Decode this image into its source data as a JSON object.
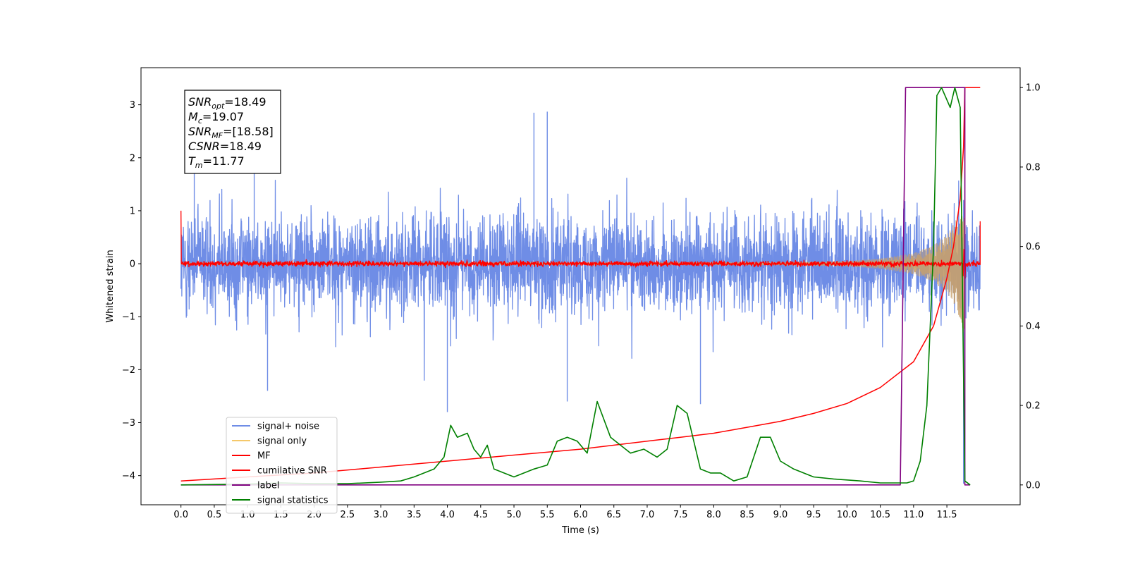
{
  "chart_data": {
    "type": "line",
    "xlabel": "Time (s)",
    "ylabel": "Whitened strain",
    "xlim": [
      -0.6,
      12.6
    ],
    "ylim": [
      -4.55,
      3.7
    ],
    "y2lim": [
      -0.05,
      1.05
    ],
    "x_ticks": [
      "0.0",
      "0.5",
      "1.0",
      "1.5",
      "2.0",
      "2.5",
      "3.0",
      "3.5",
      "4.0",
      "4.5",
      "5.0",
      "5.5",
      "6.0",
      "6.5",
      "7.0",
      "7.5",
      "8.0",
      "8.5",
      "9.0",
      "9.5",
      "10.0",
      "10.5",
      "11.0",
      "11.5"
    ],
    "y_ticks": [
      "3",
      "2",
      "1",
      "0",
      "−1",
      "−2",
      "−3",
      "−4"
    ],
    "y2_ticks": [
      "1.0",
      "0.8",
      "0.6",
      "0.4",
      "0.2",
      "0.0"
    ],
    "annotation": {
      "lines": [
        {
          "name": "SNR",
          "sub": "opt",
          "value": "=18.49"
        },
        {
          "name": "M",
          "sub": "c",
          "value": "=19.07"
        },
        {
          "name": "SNR",
          "sub": "MF",
          "value": "=[18.58]"
        },
        {
          "name": "CSNR",
          "sub": "",
          "value": "=18.49"
        },
        {
          "name": "T",
          "sub": "m",
          "value": "=11.77"
        }
      ]
    },
    "legend": {
      "placement": "lower-left",
      "entries": [
        {
          "label": "signal+ noise",
          "color": "#6f8de6"
        },
        {
          "label": "signal only",
          "color": "#f5c86a"
        },
        {
          "label": "MF",
          "color": "#ff0000"
        },
        {
          "label": "cumilative SNR",
          "color": "#ff0000"
        },
        {
          "label": "label",
          "color": "#800080"
        },
        {
          "label": "signal statistics",
          "color": "#008000"
        }
      ]
    },
    "series": [
      {
        "name": "signal+ noise",
        "axis": "left",
        "color": "#6f8de6",
        "x_range": [
          0.0,
          12.0
        ],
        "envelope_typical": [
          -1.3,
          1.5
        ],
        "extremes": [
          {
            "x": 0.2,
            "y": 2.4
          },
          {
            "x": 1.1,
            "y": 2.5
          },
          {
            "x": 1.3,
            "y": -2.4
          },
          {
            "x": 4.0,
            "y": -2.8
          },
          {
            "x": 5.3,
            "y": 2.85
          },
          {
            "x": 5.5,
            "y": 2.87
          },
          {
            "x": 5.8,
            "y": -2.6
          },
          {
            "x": 7.8,
            "y": -2.65
          },
          {
            "x": 11.75,
            "y": -4.15
          }
        ]
      },
      {
        "name": "signal only",
        "axis": "left",
        "color": "#f5c86a",
        "x_range": [
          0.0,
          12.0
        ],
        "chirp_amplitude": [
          {
            "x": 0.0,
            "amp": 0.02
          },
          {
            "x": 9.0,
            "amp": 0.03
          },
          {
            "x": 10.0,
            "amp": 0.05
          },
          {
            "x": 10.5,
            "amp": 0.1
          },
          {
            "x": 11.0,
            "amp": 0.2
          },
          {
            "x": 11.3,
            "amp": 0.35
          },
          {
            "x": 11.5,
            "amp": 0.55
          },
          {
            "x": 11.65,
            "amp": 0.85
          },
          {
            "x": 11.75,
            "amp": 1.3
          }
        ]
      },
      {
        "name": "MF",
        "axis": "left",
        "color": "#ff0000",
        "x_range": [
          0.0,
          12.0
        ],
        "edges": [
          {
            "x": 0.0,
            "y": 1.0
          },
          {
            "x": 12.0,
            "y": 0.8
          }
        ],
        "noise_amplitude": 0.08
      },
      {
        "name": "cumilative SNR",
        "axis": "right",
        "color": "#ff0000",
        "points": [
          [
            0.0,
            0.01
          ],
          [
            1.0,
            0.02
          ],
          [
            2.0,
            0.03
          ],
          [
            3.0,
            0.045
          ],
          [
            4.0,
            0.06
          ],
          [
            5.0,
            0.075
          ],
          [
            6.0,
            0.09
          ],
          [
            7.0,
            0.11
          ],
          [
            7.5,
            0.12
          ],
          [
            8.0,
            0.13
          ],
          [
            8.5,
            0.145
          ],
          [
            9.0,
            0.16
          ],
          [
            9.5,
            0.18
          ],
          [
            10.0,
            0.205
          ],
          [
            10.5,
            0.245
          ],
          [
            11.0,
            0.31
          ],
          [
            11.3,
            0.4
          ],
          [
            11.5,
            0.52
          ],
          [
            11.6,
            0.6
          ],
          [
            11.7,
            0.72
          ],
          [
            11.75,
            0.85
          ],
          [
            11.77,
            1.0
          ],
          [
            12.0,
            1.0
          ]
        ]
      },
      {
        "name": "label",
        "axis": "right",
        "color": "#800080",
        "points": [
          [
            0.0,
            0.0
          ],
          [
            10.8,
            0.0
          ],
          [
            10.88,
            1.0
          ],
          [
            11.77,
            1.0
          ],
          [
            11.77,
            0.0
          ],
          [
            11.85,
            0.0
          ]
        ]
      },
      {
        "name": "signal statistics",
        "axis": "right",
        "color": "#008000",
        "points": [
          [
            0.0,
            0.0
          ],
          [
            1.0,
            0.002
          ],
          [
            1.5,
            0.005
          ],
          [
            2.0,
            0.003
          ],
          [
            2.5,
            0.003
          ],
          [
            3.0,
            0.007
          ],
          [
            3.3,
            0.01
          ],
          [
            3.5,
            0.02
          ],
          [
            3.8,
            0.04
          ],
          [
            3.95,
            0.07
          ],
          [
            4.05,
            0.15
          ],
          [
            4.15,
            0.12
          ],
          [
            4.3,
            0.13
          ],
          [
            4.4,
            0.09
          ],
          [
            4.5,
            0.07
          ],
          [
            4.6,
            0.1
          ],
          [
            4.7,
            0.04
          ],
          [
            5.0,
            0.02
          ],
          [
            5.3,
            0.04
          ],
          [
            5.5,
            0.05
          ],
          [
            5.65,
            0.11
          ],
          [
            5.8,
            0.12
          ],
          [
            5.95,
            0.11
          ],
          [
            6.1,
            0.08
          ],
          [
            6.25,
            0.21
          ],
          [
            6.45,
            0.12
          ],
          [
            6.6,
            0.1
          ],
          [
            6.75,
            0.08
          ],
          [
            6.95,
            0.09
          ],
          [
            7.15,
            0.07
          ],
          [
            7.3,
            0.09
          ],
          [
            7.45,
            0.2
          ],
          [
            7.6,
            0.18
          ],
          [
            7.8,
            0.04
          ],
          [
            7.95,
            0.03
          ],
          [
            8.1,
            0.03
          ],
          [
            8.3,
            0.01
          ],
          [
            8.5,
            0.02
          ],
          [
            8.7,
            0.12
          ],
          [
            8.85,
            0.12
          ],
          [
            9.0,
            0.06
          ],
          [
            9.2,
            0.04
          ],
          [
            9.5,
            0.02
          ],
          [
            9.8,
            0.015
          ],
          [
            10.2,
            0.01
          ],
          [
            10.5,
            0.005
          ],
          [
            10.9,
            0.005
          ],
          [
            11.0,
            0.01
          ],
          [
            11.1,
            0.06
          ],
          [
            11.2,
            0.2
          ],
          [
            11.3,
            0.6
          ],
          [
            11.35,
            0.98
          ],
          [
            11.42,
            1.0
          ],
          [
            11.55,
            0.95
          ],
          [
            11.62,
            1.0
          ],
          [
            11.7,
            0.95
          ],
          [
            11.77,
            0.01
          ],
          [
            11.85,
            0.0
          ]
        ]
      }
    ]
  }
}
